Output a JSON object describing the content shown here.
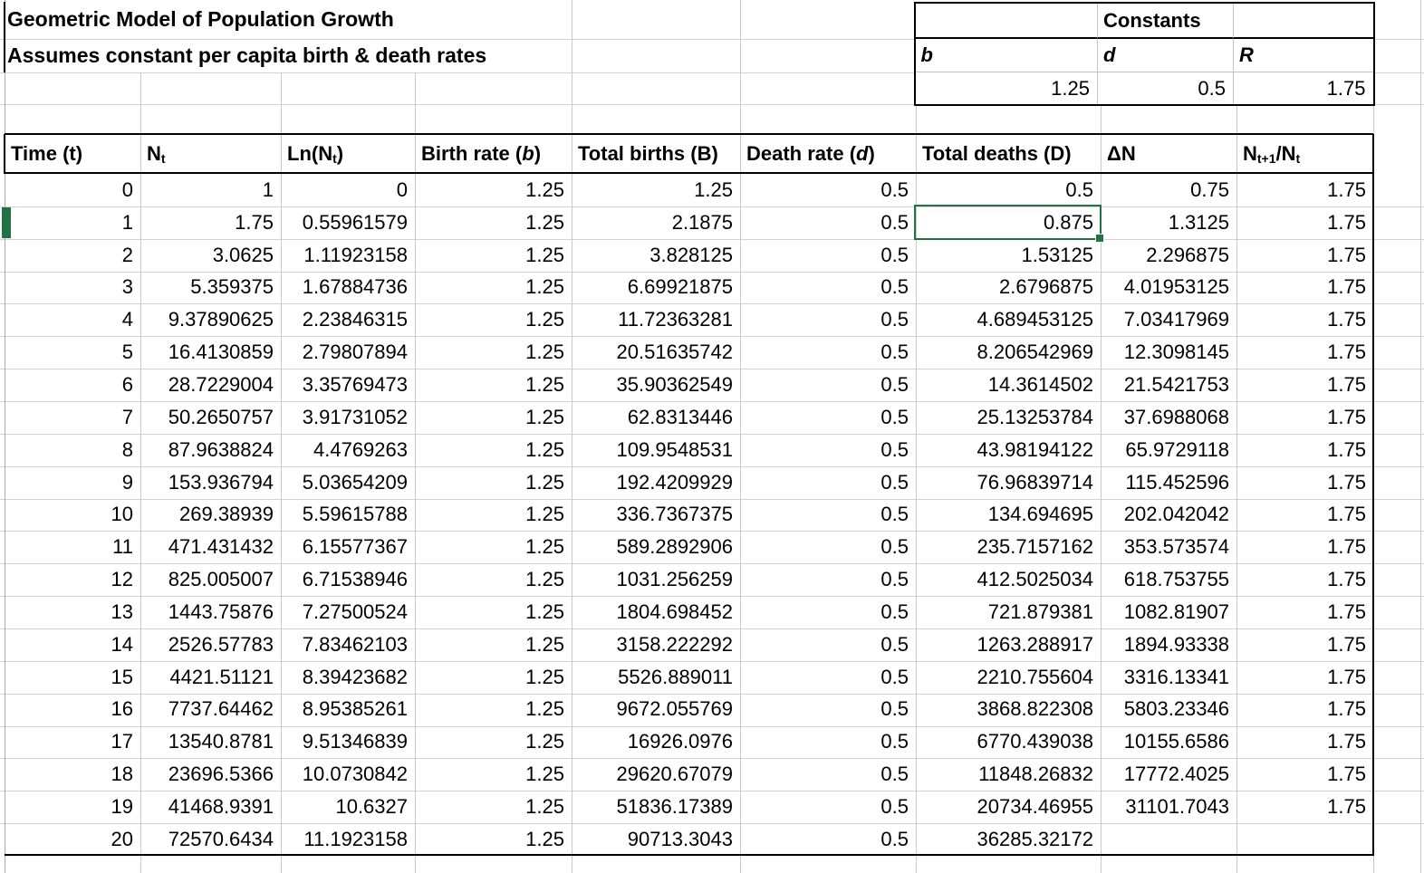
{
  "app": {
    "kind": "spreadsheet"
  },
  "title": "Geometric Model of Population Growth",
  "subtitle": "Assumes constant per capita birth & death rates",
  "constants": {
    "title": "Constants",
    "labels": [
      "b",
      "d",
      "R"
    ],
    "values": [
      "1.25",
      "0.5",
      "1.75"
    ]
  },
  "table": {
    "headers": [
      [
        {
          "t": "Time (t)"
        }
      ],
      [
        {
          "t": "N"
        },
        {
          "t": "t",
          "sub": true
        }
      ],
      [
        {
          "t": "Ln(N"
        },
        {
          "t": "t",
          "sub": true
        },
        {
          "t": ")"
        }
      ],
      [
        {
          "t": "Birth rate ("
        },
        {
          "t": "b",
          "it": true
        },
        {
          "t": " )"
        }
      ],
      [
        {
          "t": "Total births (B)"
        }
      ],
      [
        {
          "t": "Death rate ("
        },
        {
          "t": "d",
          "it": true
        },
        {
          "t": " )"
        }
      ],
      [
        {
          "t": "Total deaths (D)"
        }
      ],
      [
        {
          "t": "ΔN"
        }
      ],
      [
        {
          "t": "N"
        },
        {
          "t": "t+1",
          "sub": true
        },
        {
          "t": "/N"
        },
        {
          "t": "t",
          "sub": true
        }
      ]
    ],
    "rows": [
      [
        "0",
        "1",
        "0",
        "1.25",
        "1.25",
        "0.5",
        "0.5",
        "0.75",
        "1.75"
      ],
      [
        "1",
        "1.75",
        "0.55961579",
        "1.25",
        "2.1875",
        "0.5",
        "0.875",
        "1.3125",
        "1.75"
      ],
      [
        "2",
        "3.0625",
        "1.11923158",
        "1.25",
        "3.828125",
        "0.5",
        "1.53125",
        "2.296875",
        "1.75"
      ],
      [
        "3",
        "5.359375",
        "1.67884736",
        "1.25",
        "6.69921875",
        "0.5",
        "2.6796875",
        "4.01953125",
        "1.75"
      ],
      [
        "4",
        "9.37890625",
        "2.23846315",
        "1.25",
        "11.72363281",
        "0.5",
        "4.689453125",
        "7.03417969",
        "1.75"
      ],
      [
        "5",
        "16.4130859",
        "2.79807894",
        "1.25",
        "20.51635742",
        "0.5",
        "8.206542969",
        "12.3098145",
        "1.75"
      ],
      [
        "6",
        "28.7229004",
        "3.35769473",
        "1.25",
        "35.90362549",
        "0.5",
        "14.3614502",
        "21.5421753",
        "1.75"
      ],
      [
        "7",
        "50.2650757",
        "3.91731052",
        "1.25",
        "62.8313446",
        "0.5",
        "25.13253784",
        "37.6988068",
        "1.75"
      ],
      [
        "8",
        "87.9638824",
        "4.4769263",
        "1.25",
        "109.9548531",
        "0.5",
        "43.98194122",
        "65.9729118",
        "1.75"
      ],
      [
        "9",
        "153.936794",
        "5.03654209",
        "1.25",
        "192.4209929",
        "0.5",
        "76.96839714",
        "115.452596",
        "1.75"
      ],
      [
        "10",
        "269.38939",
        "5.59615788",
        "1.25",
        "336.7367375",
        "0.5",
        "134.694695",
        "202.042042",
        "1.75"
      ],
      [
        "11",
        "471.431432",
        "6.15577367",
        "1.25",
        "589.2892906",
        "0.5",
        "235.7157162",
        "353.573574",
        "1.75"
      ],
      [
        "12",
        "825.005007",
        "6.71538946",
        "1.25",
        "1031.256259",
        "0.5",
        "412.5025034",
        "618.753755",
        "1.75"
      ],
      [
        "13",
        "1443.75876",
        "7.27500524",
        "1.25",
        "1804.698452",
        "0.5",
        "721.879381",
        "1082.81907",
        "1.75"
      ],
      [
        "14",
        "2526.57783",
        "7.83462103",
        "1.25",
        "3158.222292",
        "0.5",
        "1263.288917",
        "1894.93338",
        "1.75"
      ],
      [
        "15",
        "4421.51121",
        "8.39423682",
        "1.25",
        "5526.889011",
        "0.5",
        "2210.755604",
        "3316.13341",
        "1.75"
      ],
      [
        "16",
        "7737.64462",
        "8.95385261",
        "1.25",
        "9672.055769",
        "0.5",
        "3868.822308",
        "5803.23346",
        "1.75"
      ],
      [
        "17",
        "13540.8781",
        "9.51346839",
        "1.25",
        "16926.0976",
        "0.5",
        "6770.439038",
        "10155.6586",
        "1.75"
      ],
      [
        "18",
        "23696.5366",
        "10.0730842",
        "1.25",
        "29620.67079",
        "0.5",
        "11848.26832",
        "17772.4025",
        "1.75"
      ],
      [
        "19",
        "41468.9391",
        "10.6327",
        "1.25",
        "51836.17389",
        "0.5",
        "20734.46955",
        "31101.7043",
        "1.75"
      ],
      [
        "20",
        "72570.6434",
        "11.1923158",
        "1.25",
        "90713.3043",
        "0.5",
        "36285.32172",
        "",
        ""
      ]
    ]
  },
  "selection": {
    "row_index": 1,
    "col_index": 6,
    "value": "0.875"
  },
  "colors": {
    "selection_green": "#217346",
    "grid_line": "#c9c9c9",
    "table_border": "#000000",
    "background": "#ffffff"
  }
}
